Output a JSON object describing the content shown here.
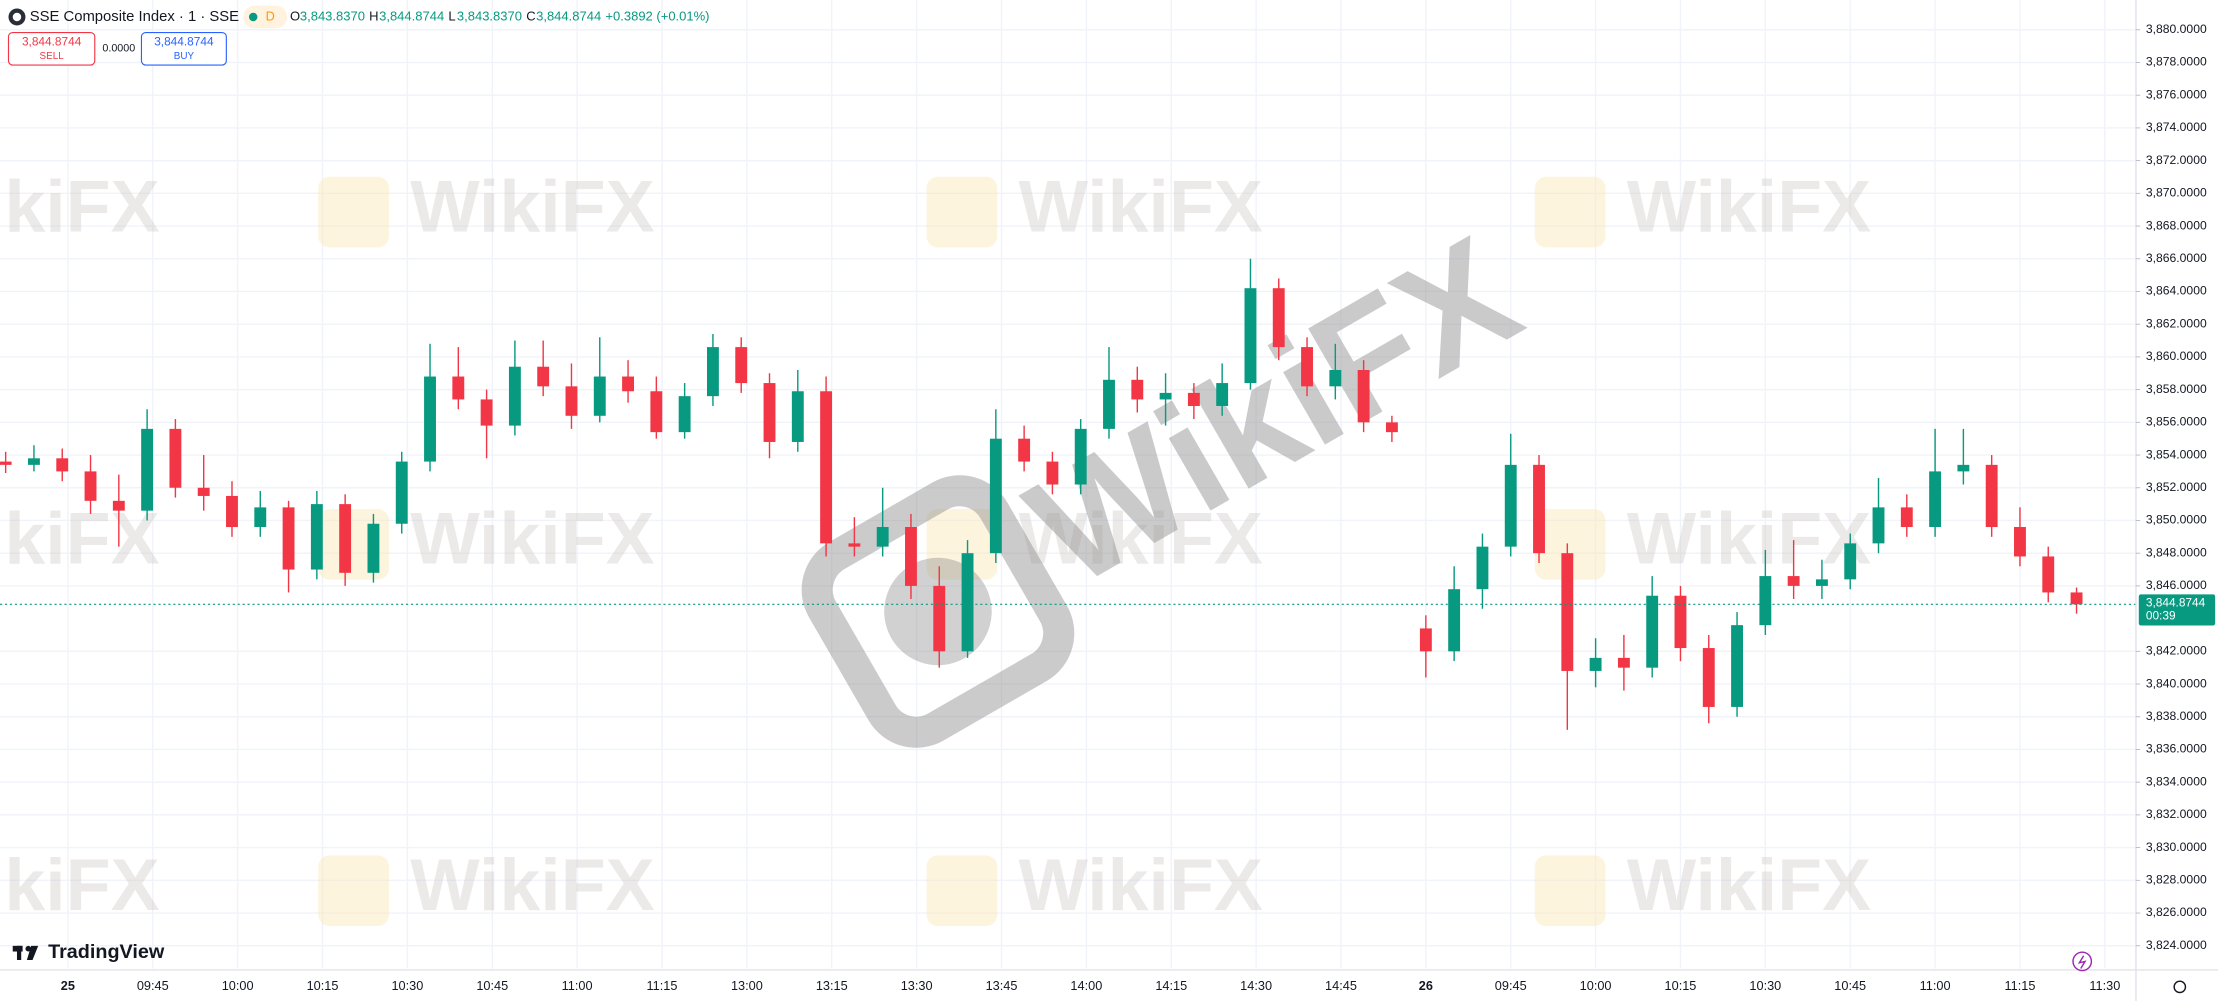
{
  "header": {
    "symbol": "SSE Composite Index · 1 · SSE",
    "badge": "D",
    "open_key": "O",
    "open_value": "3,843.8370",
    "high_key": "H",
    "high_value": "3,844.8744",
    "low_key": "L",
    "low_value": "3,843.8370",
    "close_key": "C",
    "close_value": "3,844.8744",
    "change": "+0.3892 (+0.01%)"
  },
  "trade_panel": {
    "sell_price": "3,844.8744",
    "sell_label": "SELL",
    "spread": "0.0000",
    "buy_price": "3,844.8744",
    "buy_label": "BUY"
  },
  "branding": {
    "logo": "TradingView",
    "watermark": "WikiFX"
  },
  "chart_data": {
    "type": "candlestick",
    "up_color": "#089981",
    "down_color": "#f23645",
    "grid": true,
    "last_price": {
      "value": 3844.8744,
      "label": "3,844.8744",
      "countdown": "00:39",
      "color": "#089981"
    },
    "xlim": [
      -1,
      376.5
    ],
    "xticks": [
      {
        "value": 11,
        "label": "25"
      },
      {
        "value": 26,
        "label": "09:45"
      },
      {
        "value": 41,
        "label": "10:00"
      },
      {
        "value": 56,
        "label": "10:15"
      },
      {
        "value": 71,
        "label": "10:30"
      },
      {
        "value": 86,
        "label": "10:45"
      },
      {
        "value": 101,
        "label": "11:00"
      },
      {
        "value": 116,
        "label": "11:15"
      },
      {
        "value": 131,
        "label": "13:00"
      },
      {
        "value": 146,
        "label": "13:15"
      },
      {
        "value": 161,
        "label": "13:30"
      },
      {
        "value": 176,
        "label": "13:45"
      },
      {
        "value": 191,
        "label": "14:00"
      },
      {
        "value": 206,
        "label": "14:15"
      },
      {
        "value": 221,
        "label": "14:30"
      },
      {
        "value": 236,
        "label": "14:45"
      },
      {
        "value": 251,
        "label": "26"
      },
      {
        "value": 266,
        "label": "09:45"
      },
      {
        "value": 281,
        "label": "10:00"
      },
      {
        "value": 296,
        "label": "10:15"
      },
      {
        "value": 311,
        "label": "10:30"
      },
      {
        "value": 326,
        "label": "10:45"
      },
      {
        "value": 341,
        "label": "11:00"
      },
      {
        "value": 356,
        "label": "11:15"
      },
      {
        "value": 371,
        "label": "11:30"
      }
    ],
    "ylim": [
      3822.61,
      3881.82
    ],
    "yticks": [
      {
        "value": 3824,
        "label": "3,824.0000"
      },
      {
        "value": 3826,
        "label": "3,826.0000"
      },
      {
        "value": 3828,
        "label": "3,828.0000"
      },
      {
        "value": 3830,
        "label": "3,830.0000"
      },
      {
        "value": 3832,
        "label": "3,832.0000"
      },
      {
        "value": 3834,
        "label": "3,834.0000"
      },
      {
        "value": 3836,
        "label": "3,836.0000"
      },
      {
        "value": 3838,
        "label": "3,838.0000"
      },
      {
        "value": 3840,
        "label": "3,840.0000"
      },
      {
        "value": 3842,
        "label": "3,842.0000"
      },
      {
        "value": 3846,
        "label": "3,846.0000"
      },
      {
        "value": 3848,
        "label": "3,848.0000"
      },
      {
        "value": 3850,
        "label": "3,850.0000"
      },
      {
        "value": 3852,
        "label": "3,852.0000"
      },
      {
        "value": 3854,
        "label": "3,854.0000"
      },
      {
        "value": 3856,
        "label": "3,856.0000"
      },
      {
        "value": 3858,
        "label": "3,858.0000"
      },
      {
        "value": 3860,
        "label": "3,860.0000"
      },
      {
        "value": 3862,
        "label": "3,862.0000"
      },
      {
        "value": 3864,
        "label": "3,864.0000"
      },
      {
        "value": 3866,
        "label": "3,866.0000"
      },
      {
        "value": 3868,
        "label": "3,868.0000"
      },
      {
        "value": 3870,
        "label": "3,870.0000"
      },
      {
        "value": 3872,
        "label": "3,872.0000"
      },
      {
        "value": 3874,
        "label": "3,874.0000"
      },
      {
        "value": 3876,
        "label": "3,876.0000"
      },
      {
        "value": 3878,
        "label": "3,878.0000"
      },
      {
        "value": 3880,
        "label": "3,880.0000"
      }
    ],
    "x": [
      0,
      5,
      10,
      15,
      20,
      25,
      30,
      35,
      40,
      45,
      50,
      55,
      60,
      65,
      70,
      75,
      80,
      85,
      90,
      95,
      100,
      105,
      110,
      115,
      120,
      125,
      130,
      135,
      140,
      145,
      150,
      155,
      160,
      165,
      170,
      175,
      180,
      185,
      190,
      195,
      200,
      205,
      210,
      215,
      220,
      225,
      230,
      235,
      240,
      245,
      251,
      256,
      261,
      266,
      271,
      276,
      281,
      286,
      291,
      296,
      301,
      306,
      311,
      316,
      321,
      326,
      331,
      336,
      341,
      346,
      351,
      356,
      361,
      366
    ],
    "open": [
      3853.6,
      3853.4,
      3853.8,
      3853.0,
      3851.2,
      3850.6,
      3855.6,
      3852.0,
      3851.5,
      3849.6,
      3850.8,
      3847.0,
      3851.0,
      3846.8,
      3849.8,
      3853.6,
      3858.8,
      3857.4,
      3855.8,
      3859.4,
      3858.2,
      3856.4,
      3858.8,
      3857.9,
      3855.4,
      3857.6,
      3860.6,
      3858.4,
      3854.8,
      3857.9,
      3848.6,
      3848.4,
      3849.6,
      3846.0,
      3842.0,
      3848.0,
      3855.0,
      3853.6,
      3852.2,
      3855.6,
      3858.6,
      3857.4,
      3857.8,
      3857.0,
      3858.4,
      3864.2,
      3860.6,
      3858.2,
      3859.2,
      3856.0,
      3843.4,
      3842.0,
      3845.8,
      3848.4,
      3853.4,
      3848.0,
      3840.8,
      3841.6,
      3841.0,
      3845.4,
      3842.2,
      3838.6,
      3843.6,
      3846.6,
      3846.0,
      3846.4,
      3848.6,
      3850.8,
      3849.6,
      3853.0,
      3853.4,
      3849.6,
      3847.8,
      3845.6
    ],
    "high": [
      3854.2,
      3854.6,
      3854.4,
      3854.0,
      3852.8,
      3856.8,
      3856.2,
      3854.0,
      3852.4,
      3851.8,
      3851.2,
      3851.8,
      3851.6,
      3850.4,
      3854.2,
      3860.8,
      3860.6,
      3858.0,
      3861.0,
      3861.0,
      3859.6,
      3861.2,
      3859.8,
      3858.8,
      3858.4,
      3861.4,
      3861.2,
      3859.0,
      3859.2,
      3858.8,
      3850.2,
      3852.0,
      3850.4,
      3847.2,
      3848.8,
      3856.8,
      3855.8,
      3854.2,
      3856.2,
      3860.6,
      3859.4,
      3859.0,
      3858.4,
      3859.6,
      3866.0,
      3864.8,
      3861.2,
      3860.8,
      3859.8,
      3856.4,
      3844.2,
      3847.2,
      3849.2,
      3855.3,
      3854.0,
      3848.6,
      3842.8,
      3843.0,
      3846.6,
      3846.0,
      3843.0,
      3844.4,
      3848.2,
      3848.8,
      3847.6,
      3849.2,
      3852.6,
      3851.6,
      3855.6,
      3855.6,
      3854.0,
      3850.8,
      3848.4,
      3845.9
    ],
    "low": [
      3852.9,
      3853.0,
      3852.4,
      3850.4,
      3848.4,
      3850.0,
      3851.4,
      3850.6,
      3849.0,
      3849.0,
      3845.6,
      3846.4,
      3846.0,
      3846.2,
      3849.2,
      3853.0,
      3856.8,
      3853.8,
      3855.2,
      3857.6,
      3855.6,
      3856.0,
      3857.2,
      3855.0,
      3855.0,
      3857.0,
      3857.8,
      3853.8,
      3854.2,
      3847.8,
      3847.8,
      3847.8,
      3845.2,
      3841.0,
      3841.6,
      3847.4,
      3853.0,
      3851.6,
      3851.6,
      3855.0,
      3856.6,
      3855.8,
      3856.2,
      3856.4,
      3858.0,
      3859.8,
      3857.6,
      3857.4,
      3855.4,
      3854.8,
      3840.4,
      3841.4,
      3844.6,
      3847.8,
      3847.4,
      3837.2,
      3839.8,
      3839.6,
      3840.4,
      3841.4,
      3837.6,
      3838.0,
      3843.0,
      3845.2,
      3845.2,
      3845.8,
      3848.0,
      3849.0,
      3849.0,
      3852.2,
      3849.0,
      3847.2,
      3845.0,
      3844.3
    ],
    "close": [
      3853.4,
      3853.8,
      3853.0,
      3851.2,
      3850.6,
      3855.6,
      3852.0,
      3851.5,
      3849.6,
      3850.8,
      3847.0,
      3851.0,
      3846.8,
      3849.8,
      3853.6,
      3858.8,
      3857.4,
      3855.8,
      3859.4,
      3858.2,
      3856.4,
      3858.8,
      3857.9,
      3855.4,
      3857.6,
      3860.6,
      3858.4,
      3854.8,
      3857.9,
      3848.6,
      3848.4,
      3849.6,
      3846.0,
      3842.0,
      3848.0,
      3855.0,
      3853.6,
      3852.2,
      3855.6,
      3858.6,
      3857.4,
      3857.8,
      3857.0,
      3858.4,
      3864.2,
      3860.6,
      3858.2,
      3859.2,
      3856.0,
      3855.4,
      3842.0,
      3845.8,
      3848.4,
      3853.4,
      3848.0,
      3840.8,
      3841.6,
      3841.0,
      3845.4,
      3842.2,
      3838.6,
      3843.6,
      3846.6,
      3846.0,
      3846.4,
      3848.6,
      3850.8,
      3849.6,
      3853.0,
      3853.4,
      3849.6,
      3847.8,
      3845.6,
      3844.8744
    ]
  }
}
